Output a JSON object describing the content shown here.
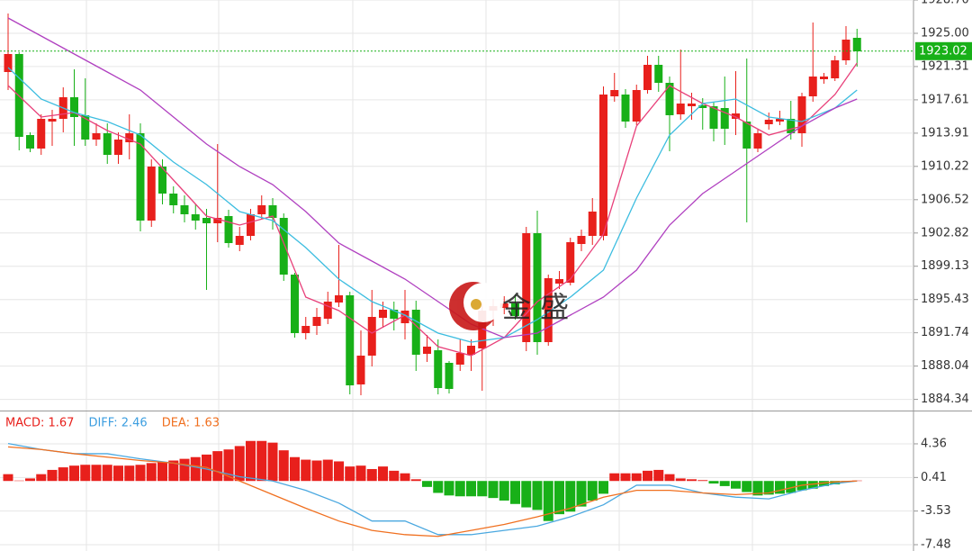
{
  "chart_data": [
    {
      "type": "candlestick",
      "up_color": "#e8201c",
      "down_color": "#18b018",
      "ylim": [
        1883.2,
        1928.7
      ],
      "yticks": [
        {
          "value": 1928.7,
          "label": "1928.70"
        },
        {
          "value": 1925,
          "label": "1925.00"
        },
        1921.31,
        1917.61,
        1913.91,
        1910.22,
        1906.52,
        1902.82,
        1899.13,
        1895.43,
        1891.74,
        1888.04,
        1884.34
      ],
      "grid": true,
      "open": [
        1920.7,
        1922.7,
        1913.7,
        1912.2,
        1915.2,
        1915.5,
        1917.9,
        1915.9,
        1913.2,
        1913.9,
        1911.5,
        1912.9,
        1913.9,
        1904.2,
        1910.2,
        1907.2,
        1905.9,
        1904.9,
        1904.5,
        1903.9,
        1904.7,
        1901.5,
        1902.5,
        1904.9,
        1905.9,
        1904.5,
        1898.2,
        1891.7,
        1892.5,
        1893.3,
        1895.1,
        1895.9,
        1886.0,
        1889.2,
        1893.4,
        1894.3,
        1892.8,
        1894.3,
        1889.4,
        1889.8,
        1888.4,
        1888.2,
        1889.3,
        1890.0,
        1894.2,
        1894.5,
        1895.0,
        1890.7,
        1902.8,
        1890.7,
        1897.2,
        1897.3,
        1901.6,
        1902.5,
        1902.5,
        1918.0,
        1918.2,
        1915.2,
        1918.7,
        1921.5,
        1919.5,
        1916.0,
        1916.9,
        1917.0,
        1916.9,
        1916.7,
        1915.5,
        1915.2,
        1912.2,
        1914.9,
        1915.2,
        1915.5,
        1913.9,
        1918.0,
        1919.9,
        1920.0,
        1922.0,
        1924.5
      ],
      "high": [
        1927.2,
        1922.9,
        1914.0,
        1916.0,
        1916.5,
        1919.0,
        1921.0,
        1920.0,
        1915.0,
        1915.0,
        1914.0,
        1916.0,
        1915.0,
        1911.0,
        1911.0,
        1908.0,
        1907.0,
        1906.0,
        1905.5,
        1912.7,
        1905.4,
        1903.5,
        1905.5,
        1907.0,
        1906.7,
        1905.0,
        1898.4,
        1893.5,
        1894.5,
        1896.3,
        1901.5,
        1896.3,
        1892.0,
        1896.5,
        1895.2,
        1895.2,
        1896.5,
        1895.3,
        1891.5,
        1891.0,
        1888.6,
        1891.0,
        1891.0,
        1895.0,
        1895.5,
        1895.8,
        1896.0,
        1903.5,
        1905.3,
        1898.2,
        1898.6,
        1902.3,
        1903.2,
        1906.7,
        1919.1,
        1920.6,
        1918.8,
        1919.3,
        1922.5,
        1922.5,
        1920.2,
        1923.2,
        1918.4,
        1917.8,
        1917.3,
        1920.2,
        1920.8,
        1922.2,
        1914.3,
        1916.2,
        1916.4,
        1917.5,
        1918.4,
        1926.2,
        1920.6,
        1922.5,
        1925.8,
        1925.5
      ],
      "low": [
        1918.7,
        1912.0,
        1911.8,
        1911.5,
        1912.5,
        1914.0,
        1912.5,
        1912.5,
        1912.5,
        1910.5,
        1910.5,
        1911.0,
        1903.0,
        1903.5,
        1906.0,
        1905.0,
        1904.0,
        1903.2,
        1896.5,
        1901.8,
        1901.2,
        1900.8,
        1902.0,
        1904.4,
        1903.2,
        1897.5,
        1891.2,
        1891.0,
        1891.5,
        1892.7,
        1894.6,
        1884.9,
        1884.8,
        1888.0,
        1892.3,
        1892.0,
        1891.0,
        1887.5,
        1888.5,
        1884.9,
        1885.0,
        1887.5,
        1887.5,
        1885.3,
        1892.5,
        1893.8,
        1893.2,
        1889.7,
        1889.3,
        1890.3,
        1896.6,
        1897.0,
        1900.8,
        1901.5,
        1902.0,
        1917.4,
        1914.5,
        1914.8,
        1918.3,
        1918.5,
        1911.9,
        1915.4,
        1915.4,
        1914.3,
        1913.0,
        1912.6,
        1913.7,
        1904.0,
        1911.8,
        1914.3,
        1914.8,
        1913.2,
        1912.4,
        1917.4,
        1919.4,
        1919.7,
        1921.5,
        1921.3
      ],
      "close": [
        1922.7,
        1913.5,
        1912.2,
        1915.5,
        1915.5,
        1917.9,
        1915.7,
        1913.2,
        1913.9,
        1911.5,
        1913.2,
        1913.9,
        1904.2,
        1910.2,
        1907.2,
        1905.9,
        1904.9,
        1904.2,
        1903.9,
        1904.5,
        1901.7,
        1902.5,
        1904.9,
        1905.9,
        1904.5,
        1898.2,
        1891.7,
        1892.5,
        1893.5,
        1895.2,
        1895.9,
        1885.9,
        1889.2,
        1893.5,
        1894.3,
        1893.3,
        1894.2,
        1889.3,
        1890.2,
        1885.6,
        1885.5,
        1889.5,
        1890.3,
        1894.2,
        1894.7,
        1895.0,
        1893.6,
        1902.8,
        1890.7,
        1897.8,
        1897.7,
        1901.8,
        1902.5,
        1905.2,
        1918.2,
        1918.7,
        1915.2,
        1918.7,
        1921.5,
        1919.5,
        1915.9,
        1917.2,
        1917.2,
        1916.7,
        1914.4,
        1914.4,
        1916.1,
        1912.2,
        1913.9,
        1915.4,
        1915.5,
        1913.9,
        1918.0,
        1920.2,
        1920.2,
        1922.0,
        1924.3,
        1923.0
      ],
      "series": [
        {
          "color": "#e8407a",
          "x": [
            0,
            3,
            6,
            9,
            12,
            15,
            18,
            21,
            24,
            27,
            30,
            33,
            36,
            39,
            42,
            45,
            48,
            51,
            54,
            57,
            60,
            63,
            66,
            69,
            72,
            75,
            77
          ],
          "values": [
            1919.2,
            1915.7,
            1916.2,
            1914.2,
            1912.7,
            1908.7,
            1904.7,
            1903.7,
            1904.7,
            1895.7,
            1894.2,
            1891.7,
            1893.7,
            1890.2,
            1889.2,
            1891.2,
            1895.2,
            1897.7,
            1902.7,
            1914.7,
            1919.2,
            1917.2,
            1915.7,
            1913.7,
            1914.7,
            1918.2,
            1921.7
          ]
        },
        {
          "color": "#3cbde0",
          "x": [
            0,
            3,
            6,
            9,
            12,
            15,
            18,
            21,
            24,
            27,
            30,
            33,
            36,
            39,
            42,
            45,
            48,
            51,
            54,
            57,
            60,
            63,
            66,
            69,
            72,
            75,
            77
          ],
          "values": [
            1921.2,
            1917.7,
            1916.2,
            1915.2,
            1913.7,
            1910.7,
            1908.2,
            1905.2,
            1904.2,
            1901.2,
            1897.7,
            1895.2,
            1893.7,
            1891.7,
            1890.7,
            1891.2,
            1893.2,
            1895.7,
            1898.7,
            1906.7,
            1913.7,
            1917.2,
            1917.7,
            1915.7,
            1915.2,
            1916.7,
            1918.7
          ]
        },
        {
          "color": "#b040c0",
          "x": [
            0,
            3,
            6,
            9,
            12,
            15,
            18,
            21,
            24,
            27,
            30,
            33,
            36,
            39,
            42,
            45,
            48,
            51,
            54,
            57,
            60,
            63,
            66,
            69,
            72,
            75,
            77
          ],
          "values": [
            1926.7,
            1924.7,
            1922.7,
            1920.7,
            1918.7,
            1915.7,
            1912.7,
            1910.2,
            1908.2,
            1905.2,
            1901.7,
            1899.7,
            1897.7,
            1895.2,
            1892.7,
            1891.2,
            1891.7,
            1893.7,
            1895.7,
            1898.7,
            1903.7,
            1907.2,
            1909.7,
            1912.2,
            1914.7,
            1916.7,
            1917.7
          ]
        }
      ],
      "last_price": {
        "value": 1923.02,
        "color": "#18b018"
      },
      "watermark": "金 盛"
    },
    {
      "type": "macd",
      "up_color": "#e8201c",
      "down_color": "#18b018",
      "ylim": [
        -8.22,
        7.95
      ],
      "yticks": [
        4.36,
        0.41,
        -3.53,
        -7.48
      ],
      "legend": [
        {
          "text": "MACD: 1.67",
          "color": "#e8201c"
        },
        {
          "text": "DIFF: 2.46",
          "color": "#3c9ee0"
        },
        {
          "text": "DEA: 1.63",
          "color": "#f07020"
        }
      ],
      "values": [
        0.8,
        0.05,
        0.3,
        0.8,
        1.3,
        1.6,
        1.8,
        1.9,
        1.9,
        1.9,
        1.8,
        1.8,
        1.9,
        2.1,
        2.2,
        2.4,
        2.6,
        2.8,
        3.1,
        3.5,
        3.7,
        4.1,
        4.7,
        4.7,
        4.5,
        3.6,
        2.8,
        2.5,
        2.4,
        2.5,
        2.3,
        1.7,
        1.8,
        1.4,
        1.7,
        1.2,
        0.9,
        0.2,
        -0.7,
        -1.4,
        -1.7,
        -1.8,
        -1.8,
        -1.8,
        -2.0,
        -2.3,
        -2.7,
        -3.1,
        -3.4,
        -4.7,
        -3.9,
        -3.6,
        -3.0,
        -2.3,
        -1.5,
        0.9,
        0.9,
        0.9,
        1.2,
        1.3,
        0.8,
        0.3,
        0.2,
        0.1,
        -0.3,
        -0.6,
        -0.9,
        -1.3,
        -1.7,
        -1.6,
        -1.5,
        -1.4,
        -1.1,
        -0.9,
        -0.6,
        -0.4,
        -0.1,
        0.05
      ],
      "series": [
        {
          "color": "#4aa8e0",
          "x": [
            0,
            3,
            6,
            9,
            12,
            15,
            18,
            21,
            24,
            27,
            30,
            33,
            36,
            39,
            42,
            45,
            48,
            51,
            54,
            57,
            60,
            63,
            66,
            69,
            72,
            75,
            77
          ],
          "values": [
            4.4,
            3.7,
            3.2,
            3.2,
            2.6,
            2.1,
            1.4,
            0.5,
            0,
            -1.1,
            -2.6,
            -4.7,
            -4.7,
            -6.3,
            -6.3,
            -5.8,
            -5.3,
            -4.2,
            -2.8,
            -0.5,
            -0.5,
            -1.4,
            -1.9,
            -2.1,
            -1.1,
            -0.3,
            0
          ]
        },
        {
          "color": "#f07020",
          "x": [
            0,
            3,
            6,
            9,
            12,
            15,
            18,
            21,
            24,
            27,
            30,
            33,
            36,
            39,
            42,
            45,
            48,
            51,
            54,
            57,
            60,
            63,
            66,
            69,
            72,
            75,
            77
          ],
          "values": [
            4.0,
            3.7,
            3.2,
            2.8,
            2.4,
            2.1,
            1.6,
            0,
            -1.6,
            -3.2,
            -4.7,
            -5.8,
            -6.3,
            -6.5,
            -5.8,
            -5.1,
            -4.2,
            -3.2,
            -1.9,
            -1.1,
            -1.1,
            -1.4,
            -1.6,
            -1.4,
            -0.5,
            -0.1,
            0
          ]
        }
      ]
    }
  ]
}
